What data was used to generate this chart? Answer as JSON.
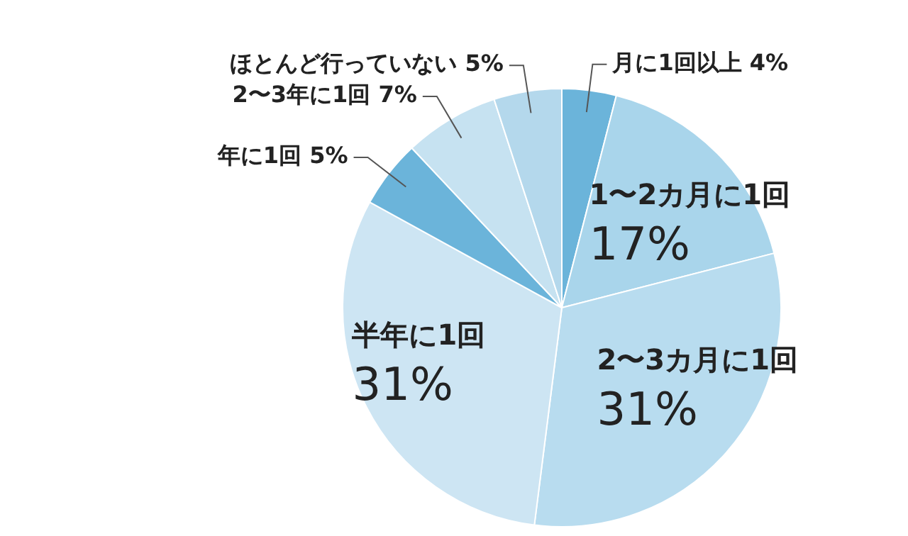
{
  "chart_data": {
    "type": "pie",
    "categories": [
      "月に1回以上",
      "1〜2カ月に1回",
      "2〜3カ月に1回",
      "半年に1回",
      "年に1回",
      "2〜3年に1回",
      "ほとんど行っていない"
    ],
    "values": [
      4,
      17,
      31,
      31,
      5,
      7,
      5
    ],
    "value_labels": [
      "4%",
      "17%",
      "31%",
      "31%",
      "5%",
      "7%",
      "5%"
    ],
    "colors": [
      "#6bb4da",
      "#a9d5eb",
      "#b8dcef",
      "#cde5f3",
      "#6bb4da",
      "#c6e2f1",
      "#b4d8ec"
    ],
    "legend": false
  }
}
